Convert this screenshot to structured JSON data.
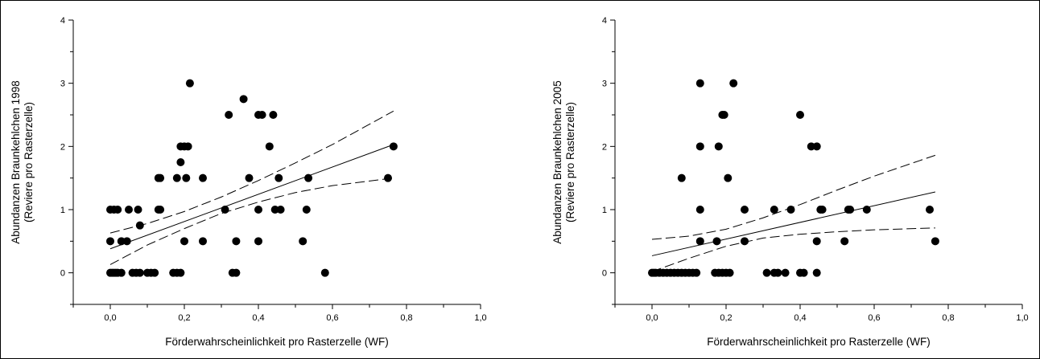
{
  "chart_data": [
    {
      "type": "scatter",
      "xlabel": "Förderwahrscheinlichkeit pro Rasterzelle (WF)",
      "ylabel": [
        "Abundanzen Braunkehlchen 1998",
        "(Reviere pro Rasterzelle)"
      ],
      "xlim": [
        -0.1,
        1.0
      ],
      "ylim": [
        -0.5,
        4.0
      ],
      "xticks": [
        0.0,
        0.2,
        0.4,
        0.6,
        0.8,
        1.0
      ],
      "xtick_labels": [
        "0,0",
        "0,2",
        "0,4",
        "0,6",
        "0,8",
        "1,0"
      ],
      "yticks": [
        0,
        1,
        2,
        3,
        4
      ],
      "ytick_labels": [
        "0",
        "1",
        "2",
        "3",
        "4"
      ],
      "grid": false,
      "points": [
        [
          0.0,
          0
        ],
        [
          0.005,
          0
        ],
        [
          0.01,
          0
        ],
        [
          0.015,
          0
        ],
        [
          0.02,
          0
        ],
        [
          0.03,
          0
        ],
        [
          0.06,
          0
        ],
        [
          0.07,
          0
        ],
        [
          0.08,
          0
        ],
        [
          0.1,
          0
        ],
        [
          0.11,
          0
        ],
        [
          0.12,
          0
        ],
        [
          0.17,
          0
        ],
        [
          0.18,
          0
        ],
        [
          0.19,
          0
        ],
        [
          0.33,
          0
        ],
        [
          0.34,
          0
        ],
        [
          0.58,
          0
        ],
        [
          0.0,
          0.5
        ],
        [
          0.03,
          0.5
        ],
        [
          0.045,
          0.5
        ],
        [
          0.2,
          0.5
        ],
        [
          0.25,
          0.5
        ],
        [
          0.34,
          0.5
        ],
        [
          0.4,
          0.5
        ],
        [
          0.52,
          0.5
        ],
        [
          0.08,
          0.75
        ],
        [
          0.0,
          1
        ],
        [
          0.01,
          1
        ],
        [
          0.02,
          1
        ],
        [
          0.05,
          1
        ],
        [
          0.075,
          1
        ],
        [
          0.13,
          1
        ],
        [
          0.135,
          1
        ],
        [
          0.31,
          1
        ],
        [
          0.4,
          1
        ],
        [
          0.445,
          1
        ],
        [
          0.46,
          1
        ],
        [
          0.53,
          1
        ],
        [
          0.13,
          1.5
        ],
        [
          0.135,
          1.5
        ],
        [
          0.18,
          1.5
        ],
        [
          0.205,
          1.5
        ],
        [
          0.25,
          1.5
        ],
        [
          0.375,
          1.5
        ],
        [
          0.455,
          1.5
        ],
        [
          0.535,
          1.5
        ],
        [
          0.75,
          1.5
        ],
        [
          0.19,
          1.75
        ],
        [
          0.19,
          2
        ],
        [
          0.2,
          2
        ],
        [
          0.21,
          2
        ],
        [
          0.43,
          2
        ],
        [
          0.765,
          2
        ],
        [
          0.32,
          2.5
        ],
        [
          0.4,
          2.5
        ],
        [
          0.41,
          2.5
        ],
        [
          0.44,
          2.5
        ],
        [
          0.36,
          2.75
        ],
        [
          0.215,
          3
        ]
      ],
      "regression": {
        "x": [
          0.0,
          0.765
        ],
        "y": [
          0.38,
          2.03
        ]
      },
      "ci_upper": {
        "x": [
          0.0,
          0.1,
          0.2,
          0.3,
          0.4,
          0.5,
          0.6,
          0.765
        ],
        "y": [
          0.63,
          0.78,
          0.97,
          1.2,
          1.46,
          1.74,
          2.03,
          2.56
        ]
      },
      "ci_lower": {
        "x": [
          0.0,
          0.1,
          0.2,
          0.3,
          0.4,
          0.5,
          0.6,
          0.765
        ],
        "y": [
          0.13,
          0.44,
          0.7,
          0.94,
          1.12,
          1.27,
          1.38,
          1.5
        ]
      }
    },
    {
      "type": "scatter",
      "xlabel": "Förderwahrscheinlichkeit pro Rasterzelle (WF)",
      "ylabel": [
        "Abundanzen Braunkehlchen 2005",
        "(Reviere pro Rasterzelle)"
      ],
      "xlim": [
        -0.1,
        1.0
      ],
      "ylim": [
        -0.5,
        4.0
      ],
      "xticks": [
        0.0,
        0.2,
        0.4,
        0.6,
        0.8,
        1.0
      ],
      "xtick_labels": [
        "0,0",
        "0,2",
        "0,4",
        "0,6",
        "0,8",
        "1,0"
      ],
      "yticks": [
        0,
        1,
        2,
        3,
        4
      ],
      "ytick_labels": [
        "0",
        "1",
        "2",
        "3",
        "4"
      ],
      "grid": false,
      "points": [
        [
          0.0,
          0
        ],
        [
          0.005,
          0
        ],
        [
          0.01,
          0
        ],
        [
          0.02,
          0
        ],
        [
          0.03,
          0
        ],
        [
          0.04,
          0
        ],
        [
          0.05,
          0
        ],
        [
          0.06,
          0
        ],
        [
          0.07,
          0
        ],
        [
          0.08,
          0
        ],
        [
          0.09,
          0
        ],
        [
          0.1,
          0
        ],
        [
          0.11,
          0
        ],
        [
          0.12,
          0
        ],
        [
          0.17,
          0
        ],
        [
          0.18,
          0
        ],
        [
          0.19,
          0
        ],
        [
          0.2,
          0
        ],
        [
          0.21,
          0
        ],
        [
          0.31,
          0
        ],
        [
          0.33,
          0
        ],
        [
          0.34,
          0
        ],
        [
          0.36,
          0
        ],
        [
          0.4,
          0
        ],
        [
          0.41,
          0
        ],
        [
          0.445,
          0
        ],
        [
          0.13,
          0.5
        ],
        [
          0.175,
          0.5
        ],
        [
          0.25,
          0.5
        ],
        [
          0.445,
          0.5
        ],
        [
          0.52,
          0.5
        ],
        [
          0.765,
          0.5
        ],
        [
          0.13,
          1
        ],
        [
          0.25,
          1
        ],
        [
          0.33,
          1
        ],
        [
          0.375,
          1
        ],
        [
          0.455,
          1
        ],
        [
          0.46,
          1
        ],
        [
          0.53,
          1
        ],
        [
          0.535,
          1
        ],
        [
          0.58,
          1
        ],
        [
          0.75,
          1
        ],
        [
          0.08,
          1.5
        ],
        [
          0.205,
          1.5
        ],
        [
          0.13,
          2
        ],
        [
          0.18,
          2
        ],
        [
          0.43,
          2
        ],
        [
          0.445,
          2
        ],
        [
          0.19,
          2.5
        ],
        [
          0.195,
          2.5
        ],
        [
          0.4,
          2.5
        ],
        [
          0.13,
          3
        ],
        [
          0.22,
          3
        ]
      ],
      "regression": {
        "x": [
          0.0,
          0.765
        ],
        "y": [
          0.27,
          1.28
        ]
      },
      "ci_upper": {
        "x": [
          0.0,
          0.1,
          0.2,
          0.3,
          0.4,
          0.5,
          0.6,
          0.765
        ],
        "y": [
          0.53,
          0.58,
          0.69,
          0.87,
          1.08,
          1.31,
          1.53,
          1.86
        ]
      },
      "ci_lower": {
        "x": [
          0.0,
          0.1,
          0.2,
          0.3,
          0.4,
          0.5,
          0.6,
          0.765
        ],
        "y": [
          0.02,
          0.23,
          0.42,
          0.55,
          0.61,
          0.65,
          0.68,
          0.71
        ]
      }
    }
  ]
}
